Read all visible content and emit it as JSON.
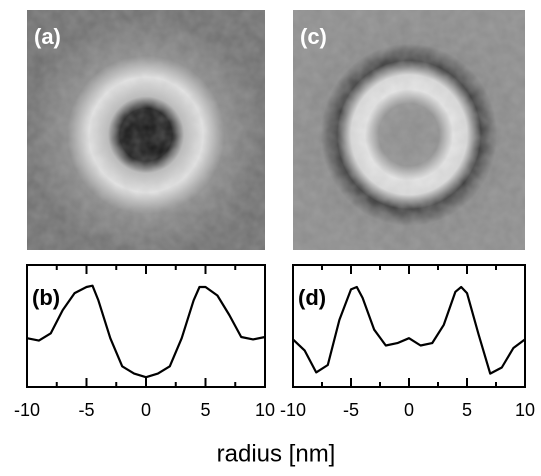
{
  "images": [
    {
      "label": "(a)"
    },
    {
      "label": "(c)"
    }
  ],
  "xlabel": "radius [nm]",
  "chart_data": [
    {
      "type": "line",
      "panel_label": "(b)",
      "color": "#000000",
      "x": [
        -10,
        -9,
        -8,
        -7,
        -6,
        -5,
        -4.5,
        -4,
        -3,
        -2,
        -1,
        0,
        1,
        2,
        3,
        4,
        4.5,
        5,
        6,
        7,
        8,
        9,
        10
      ],
      "values": [
        0.4,
        0.38,
        0.44,
        0.63,
        0.77,
        0.82,
        0.83,
        0.71,
        0.4,
        0.17,
        0.11,
        0.08,
        0.11,
        0.17,
        0.4,
        0.71,
        0.82,
        0.82,
        0.75,
        0.59,
        0.41,
        0.39,
        0.41
      ],
      "xlim": [
        -10,
        10
      ],
      "ylim": [
        0,
        1
      ],
      "xticks": [
        -10,
        -5,
        0,
        5,
        10
      ],
      "minor_xticks": [
        -7.5,
        -2.5,
        2.5,
        7.5
      ]
    },
    {
      "type": "line",
      "panel_label": "(d)",
      "color": "#000000",
      "x": [
        -10,
        -9,
        -8,
        -7,
        -6,
        -5,
        -4.5,
        -4,
        -3,
        -2,
        -1,
        0,
        1,
        2,
        3,
        4,
        4.5,
        5,
        6,
        7,
        8,
        9,
        10
      ],
      "values": [
        0.39,
        0.3,
        0.12,
        0.18,
        0.55,
        0.8,
        0.82,
        0.73,
        0.47,
        0.34,
        0.36,
        0.4,
        0.34,
        0.36,
        0.51,
        0.78,
        0.82,
        0.77,
        0.43,
        0.11,
        0.16,
        0.32,
        0.39
      ],
      "xlim": [
        -10,
        10
      ],
      "ylim": [
        0,
        1
      ],
      "xticks": [
        -10,
        -5,
        0,
        5,
        10
      ],
      "minor_xticks": [
        -7.5,
        -2.5,
        2.5,
        7.5
      ]
    }
  ]
}
